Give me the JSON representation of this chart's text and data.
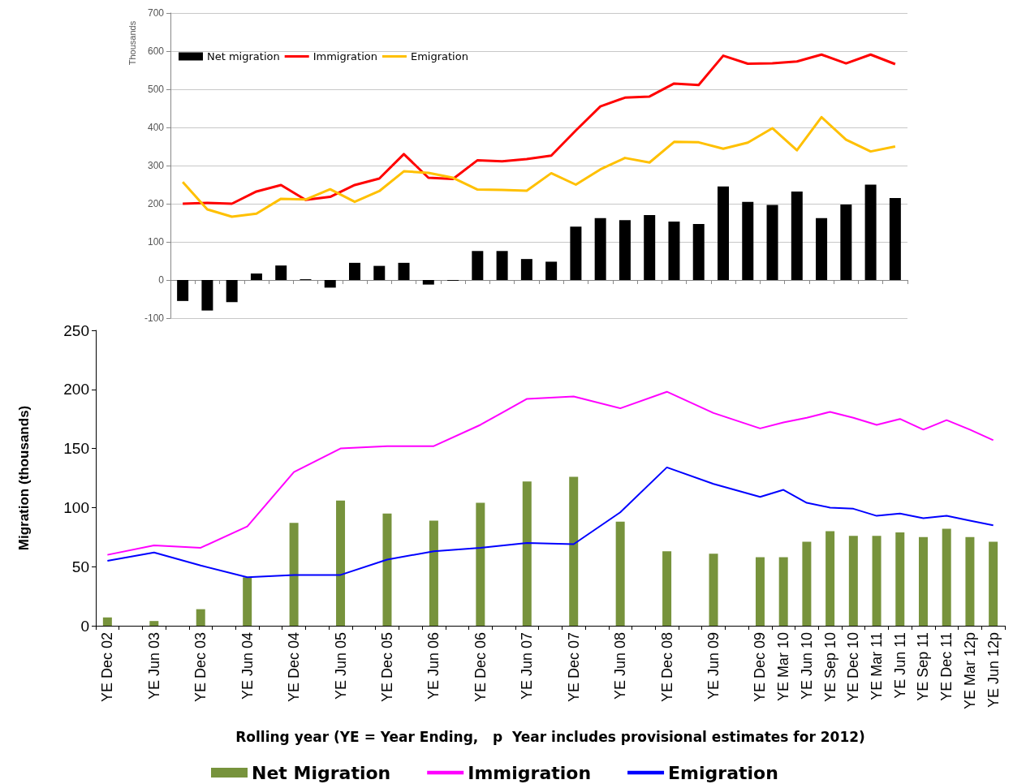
{
  "chart_data": [
    {
      "type": "bar",
      "ylabel": "Thousands",
      "categories": [
        null,
        null,
        null,
        null,
        null,
        null,
        null,
        null,
        null,
        null,
        null,
        null,
        null,
        null,
        null,
        null,
        null,
        null,
        null,
        null,
        null,
        null,
        null,
        null,
        null,
        null,
        null,
        null,
        null,
        null
      ],
      "series": [
        {
          "name": "Net migration",
          "color": "#000000",
          "values": [
            -55,
            -80,
            -58,
            17,
            38,
            2,
            -20,
            45,
            37,
            45,
            -12,
            -2,
            76,
            76,
            55,
            48,
            140,
            162,
            157,
            170,
            153,
            147,
            245,
            205,
            197,
            232,
            162,
            198,
            250,
            215
          ]
        },
        {
          "name": "Immigration",
          "type": "line",
          "color": "#ff0000",
          "values": [
            200,
            202,
            200,
            232,
            249,
            210,
            218,
            249,
            266,
            330,
            268,
            265,
            314,
            311,
            317,
            326,
            392,
            455,
            478,
            481,
            515,
            511,
            588,
            567,
            568,
            573,
            591,
            568,
            591,
            566
          ]
        },
        {
          "name": "Emigration",
          "type": "line",
          "color": "#ffc000",
          "values": [
            257,
            185,
            166,
            174,
            213,
            211,
            238,
            205,
            233,
            285,
            281,
            268,
            237,
            236,
            234,
            280,
            250,
            290,
            320,
            308,
            362,
            361,
            344,
            360,
            398,
            340,
            427,
            368,
            337,
            350
          ]
        }
      ],
      "ylim": [
        -100,
        700
      ],
      "yticks": [
        -100,
        0,
        100,
        200,
        300,
        400,
        500,
        600,
        700
      ],
      "grid": "y",
      "legend": "top left",
      "tick_labels": "y",
      "marker": "none"
    },
    {
      "type": "bar",
      "xlabel": "Rolling year (YE = Year Ending,   p  Year includes provisional estimates for 2012)",
      "ylabel": "Migration (thousands)",
      "categories": [
        "YE Dec 02",
        null,
        "YE Jun 03",
        null,
        "YE Dec 03",
        null,
        "YE Jun 04",
        null,
        "YE Dec 04",
        null,
        "YE Jun 05",
        null,
        "YE Dec 05",
        null,
        "YE Jun 06",
        null,
        "YE Dec 06",
        null,
        "YE Jun 07",
        null,
        "YE Dec 07",
        null,
        "YE Jun 08",
        null,
        "YE Dec 08",
        null,
        "YE Jun 09",
        null,
        "YE Dec 09",
        "YE Mar 10",
        "YE Jun 10",
        "YE Sep 10",
        "YE Dec 10",
        "YE Mar 11",
        "YE Jun 11",
        "YE Sep 11",
        "YE Dec 11",
        "YE Mar 12p",
        "YE Jun 12p"
      ],
      "series": [
        {
          "name": "Net Migration",
          "color": "#77933c",
          "values": [
            7,
            null,
            4,
            null,
            14,
            null,
            41,
            null,
            87,
            null,
            106,
            null,
            95,
            null,
            89,
            null,
            104,
            null,
            122,
            null,
            126,
            null,
            88,
            null,
            63,
            null,
            61,
            null,
            58,
            58,
            71,
            80,
            76,
            76,
            79,
            75,
            82,
            75,
            71
          ]
        },
        {
          "name": "Immigration",
          "type": "line",
          "color": "#ff00ff",
          "values": [
            60,
            null,
            68,
            null,
            66,
            null,
            84,
            null,
            130,
            null,
            150,
            null,
            152,
            null,
            152,
            null,
            170,
            null,
            192,
            null,
            194,
            null,
            184,
            null,
            198,
            null,
            180,
            null,
            167,
            172,
            176,
            181,
            176,
            170,
            175,
            166,
            174,
            166,
            157
          ]
        },
        {
          "name": "Emigration",
          "type": "line",
          "color": "#0000ff",
          "values": [
            55,
            null,
            62,
            null,
            51,
            null,
            41,
            null,
            43,
            null,
            43,
            null,
            56,
            null,
            63,
            null,
            66,
            null,
            70,
            null,
            69,
            null,
            96,
            null,
            134,
            null,
            120,
            null,
            109,
            115,
            104,
            100,
            99,
            93,
            95,
            91,
            93,
            89,
            85
          ]
        }
      ],
      "ylim": [
        0,
        250
      ],
      "yticks": [
        0,
        50,
        100,
        150,
        200,
        250
      ],
      "grid": false,
      "legend": "bottom",
      "marker": "none"
    }
  ]
}
